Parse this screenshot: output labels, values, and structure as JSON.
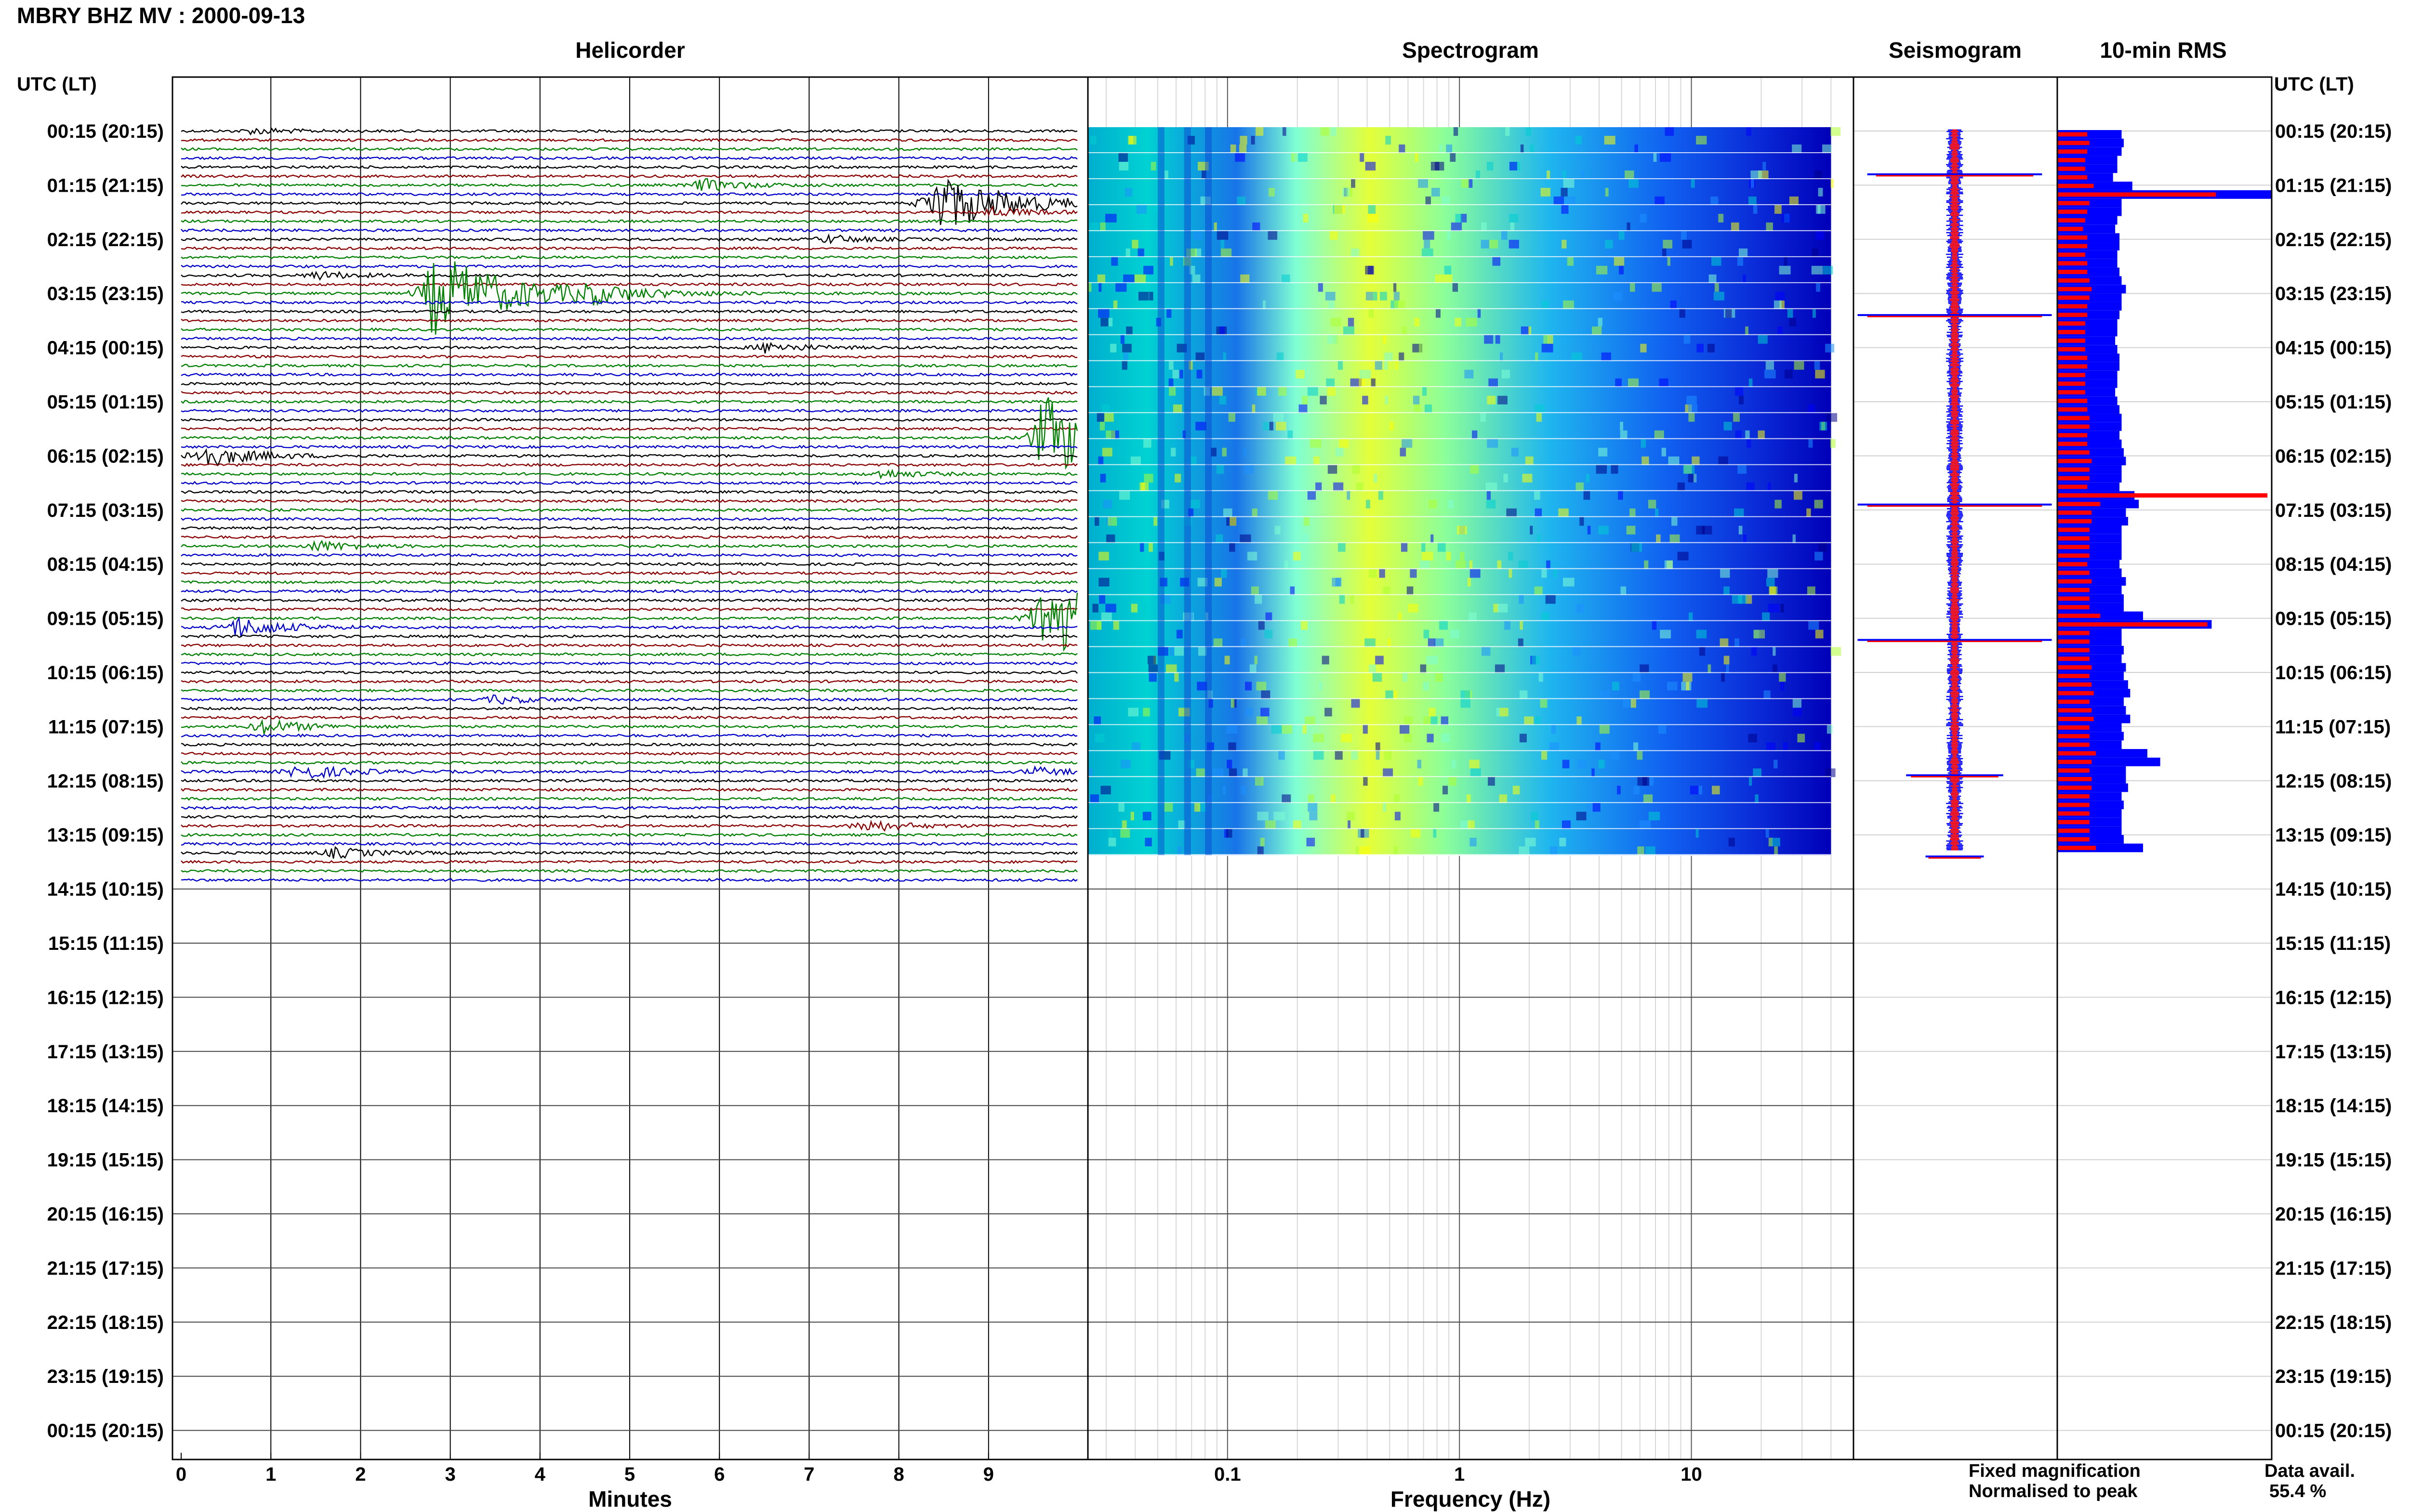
{
  "page": {
    "title": "MBRY BHZ MV : 2000-09-13",
    "panel_titles": {
      "helicorder": "Helicorder",
      "spectrogram": "Spectrogram",
      "seismogram": "Seismogram",
      "rms": "10-min RMS"
    },
    "left_axis_header": "UTC (LT)",
    "right_axis_header": "UTC (LT)",
    "hour_labels": [
      "00:15 (20:15)",
      "01:15 (21:15)",
      "02:15 (22:15)",
      "03:15 (23:15)",
      "04:15 (00:15)",
      "05:15 (01:15)",
      "06:15 (02:15)",
      "07:15 (03:15)",
      "08:15 (04:15)",
      "09:15 (05:15)",
      "10:15 (06:15)",
      "11:15 (07:15)",
      "12:15 (08:15)",
      "13:15 (09:15)",
      "14:15 (10:15)",
      "15:15 (11:15)",
      "16:15 (12:15)",
      "17:15 (13:15)",
      "18:15 (14:15)",
      "19:15 (15:15)",
      "20:15 (16:15)",
      "21:15 (17:15)",
      "22:15 (18:15)",
      "23:15 (19:15)",
      "00:15 (20:15)"
    ],
    "legend": {
      "fixed_label": "Fixed magnification",
      "fixed_color": "#0000ff",
      "normalised_label": "Normalised to peak",
      "normalised_color": "#ff0000"
    },
    "data_availability": {
      "label": "Data avail.",
      "value": "55.4 %"
    }
  },
  "chart_data": [
    {
      "type": "line",
      "panel": "helicorder",
      "xlabel": "Minutes",
      "xlim": [
        0,
        10
      ],
      "x_ticks": [
        "0",
        "1",
        "2",
        "3",
        "4",
        "5",
        "6",
        "7",
        "8",
        "9"
      ],
      "trace_colors": [
        "#000000",
        "#8b0000",
        "#008000",
        "#0000cd"
      ],
      "traces_per_hour": 6,
      "hours_with_data": 14,
      "events": [
        {
          "row": 0,
          "minute": 0.8,
          "amplitude": 0.3,
          "color": "#000000"
        },
        {
          "row": 6,
          "minute": 5.8,
          "amplitude": 0.6,
          "color": "#0000cd"
        },
        {
          "row": 8,
          "minute": 8.4,
          "amplitude": 3.0,
          "color": "#008000"
        },
        {
          "row": 9,
          "minute": 9.0,
          "amplitude": 0.5,
          "color": "#000000"
        },
        {
          "row": 12,
          "minute": 7.2,
          "amplitude": 0.4,
          "color": "#8b0000"
        },
        {
          "row": 16,
          "minute": 1.5,
          "amplitude": 0.4,
          "color": "#000000"
        },
        {
          "row": 18,
          "minute": 2.8,
          "amplitude": 4.0,
          "color": "#000000"
        },
        {
          "row": 18,
          "minute": 4.5,
          "amplitude": 0.7,
          "color": "#008000"
        },
        {
          "row": 24,
          "minute": 6.5,
          "amplitude": 0.5,
          "color": "#0000cd"
        },
        {
          "row": 34,
          "minute": 9.6,
          "amplitude": 4.0,
          "color": "#008000"
        },
        {
          "row": 36,
          "minute": 0.2,
          "amplitude": 1.2,
          "color": "#000000"
        },
        {
          "row": 38,
          "minute": 7.8,
          "amplitude": 0.4,
          "color": "#008000"
        },
        {
          "row": 46,
          "minute": 1.5,
          "amplitude": 0.5,
          "color": "#8b0000"
        },
        {
          "row": 54,
          "minute": 9.6,
          "amplitude": 4.0,
          "color": "#008000"
        },
        {
          "row": 55,
          "minute": 0.6,
          "amplitude": 1.0,
          "color": "#000000"
        },
        {
          "row": 63,
          "minute": 3.5,
          "amplitude": 0.4,
          "color": "#0000cd"
        },
        {
          "row": 66,
          "minute": 0.9,
          "amplitude": 0.7,
          "color": "#0000cd"
        },
        {
          "row": 71,
          "minute": 9.5,
          "amplitude": 0.4,
          "color": "#000000"
        },
        {
          "row": 71,
          "minute": 1.3,
          "amplitude": 0.8,
          "color": "#008000"
        },
        {
          "row": 77,
          "minute": 7.6,
          "amplitude": 0.6,
          "color": "#008000"
        },
        {
          "row": 80,
          "minute": 1.7,
          "amplitude": 0.5,
          "color": "#008000"
        }
      ]
    },
    {
      "type": "heatmap",
      "panel": "spectrogram",
      "xlabel": "Frequency (Hz)",
      "x_scale": "log",
      "xlim": [
        0.025,
        50
      ],
      "x_ticks": [
        "0.1",
        "1",
        "10"
      ],
      "data_max_frequency": 40,
      "colormap": [
        "#00008b",
        "#0000ff",
        "#1e90ff",
        "#00ced1",
        "#7fffd4",
        "#adff2f",
        "#ffff00"
      ]
    },
    {
      "type": "line",
      "panel": "seismogram",
      "series": [
        {
          "name": "Fixed magnification",
          "color": "#0000ff"
        },
        {
          "name": "Normalised to peak",
          "color": "#ff0000"
        }
      ],
      "spikes": [
        {
          "hour": 0.8,
          "amplitude": 0.9
        },
        {
          "hour": 3.4,
          "amplitude": 1.0
        },
        {
          "hour": 6.9,
          "amplitude": 1.0
        },
        {
          "hour": 9.4,
          "amplitude": 1.0
        },
        {
          "hour": 11.9,
          "amplitude": 0.5
        },
        {
          "hour": 13.4,
          "amplitude": 0.3
        }
      ]
    },
    {
      "type": "bar",
      "panel": "rms",
      "orientation": "horizontal",
      "series": [
        {
          "name": "Fixed magnification",
          "color": "#0000ff",
          "values": [
            0.3,
            0.31,
            0.3,
            0.28,
            0.28,
            0.26,
            0.35,
            1.0,
            0.3,
            0.3,
            0.28,
            0.27,
            0.29,
            0.29,
            0.28,
            0.28,
            0.29,
            0.3,
            0.32,
            0.3,
            0.3,
            0.29,
            0.28,
            0.28,
            0.27,
            0.28,
            0.29,
            0.29,
            0.28,
            0.28,
            0.27,
            0.28,
            0.29,
            0.3,
            0.3,
            0.29,
            0.3,
            0.31,
            0.32,
            0.3,
            0.3,
            0.29,
            0.36,
            0.38,
            0.32,
            0.33,
            0.3,
            0.3,
            0.3,
            0.3,
            0.29,
            0.3,
            0.32,
            0.3,
            0.31,
            0.31,
            0.4,
            0.72,
            0.3,
            0.3,
            0.31,
            0.3,
            0.32,
            0.31,
            0.33,
            0.34,
            0.31,
            0.32,
            0.34,
            0.3,
            0.31,
            0.3,
            0.42,
            0.48,
            0.32,
            0.32,
            0.33,
            0.3,
            0.31,
            0.3,
            0.3,
            0.3,
            0.31,
            0.4
          ]
        },
        {
          "name": "Normalised to peak",
          "color": "#ff0000",
          "values": [
            0.14,
            0.15,
            0.14,
            0.13,
            0.13,
            0.14,
            0.17,
            0.74,
            0.15,
            0.14,
            0.13,
            0.12,
            0.14,
            0.14,
            0.13,
            0.14,
            0.14,
            0.15,
            0.16,
            0.15,
            0.14,
            0.14,
            0.13,
            0.13,
            0.13,
            0.13,
            0.14,
            0.14,
            0.13,
            0.13,
            0.13,
            0.14,
            0.14,
            0.15,
            0.15,
            0.14,
            0.14,
            0.15,
            0.16,
            0.15,
            0.15,
            0.14,
            0.98,
            0.2,
            0.16,
            0.16,
            0.15,
            0.15,
            0.15,
            0.15,
            0.14,
            0.15,
            0.16,
            0.15,
            0.15,
            0.15,
            0.2,
            0.7,
            0.15,
            0.15,
            0.15,
            0.15,
            0.16,
            0.15,
            0.16,
            0.17,
            0.15,
            0.16,
            0.17,
            0.15,
            0.15,
            0.15,
            0.18,
            0.16,
            0.15,
            0.16,
            0.16,
            0.15,
            0.15,
            0.15,
            0.15,
            0.15,
            0.15,
            0.18
          ]
        }
      ]
    }
  ]
}
